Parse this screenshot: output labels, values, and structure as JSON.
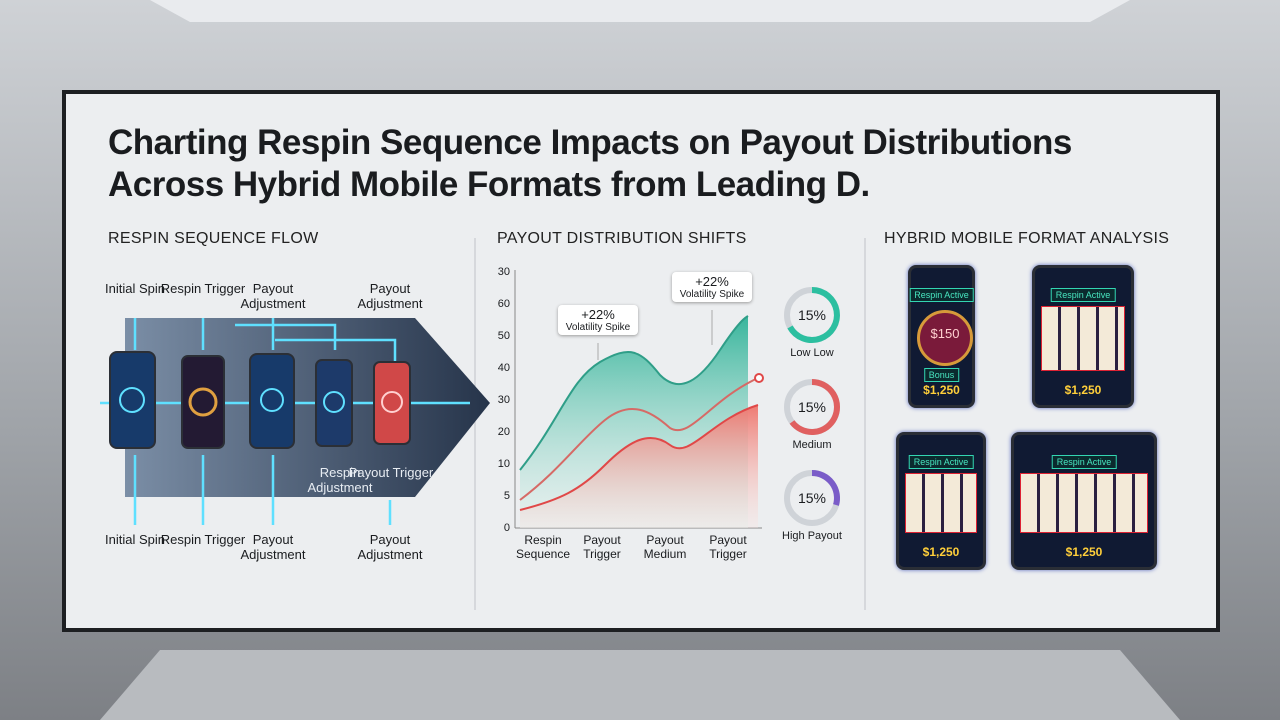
{
  "title": "Charting Respin Sequence Impacts on Payout Distributions Across Hybrid Mobile Formats from Leading D.",
  "flow": {
    "heading": "RESPIN SEQUENCE FLOW",
    "top_labels": [
      "Initial Spin",
      "Respin Trigger",
      "Payout Adjustment",
      "Payout Adjustment"
    ],
    "mid_labels": [
      "Respin Adjustment",
      "Payout Trigger"
    ],
    "bottom_labels": [
      "Initial Spin",
      "Respin Trigger",
      "Payout Adjustment",
      "Payout Adjustment"
    ]
  },
  "payout": {
    "heading": "PAYOUT DISTRIBUTION SHIFTS",
    "y_labels": [
      "30",
      "60",
      "50",
      "40",
      "30",
      "20",
      "10",
      "5",
      "0"
    ],
    "x_labels": [
      "Respin Sequence",
      "Payout Trigger",
      "Payout Medium",
      "Payout Trigger"
    ],
    "callouts": [
      {
        "value": "+22%",
        "label": "Volatility Spike"
      },
      {
        "value": "+22%",
        "label": "Volatility Spike"
      }
    ],
    "gauges": [
      {
        "value": "15%",
        "label": "Low Low"
      },
      {
        "value": "15%",
        "label": "Medium"
      },
      {
        "value": "15%",
        "label": "High Payout"
      }
    ]
  },
  "formats": {
    "heading": "HYBRID MOBILE FORMAT ANALYSIS",
    "devices": [
      {
        "badge": "Respin Active",
        "center": "$150",
        "sub": "Bonus",
        "amount": "$1,250"
      },
      {
        "badge": "Respin Active",
        "amount": "$1,250"
      },
      {
        "badge": "Respin Active",
        "amount": "$1,250"
      },
      {
        "badge": "Respin Active",
        "amount": "$1,250"
      }
    ]
  }
}
